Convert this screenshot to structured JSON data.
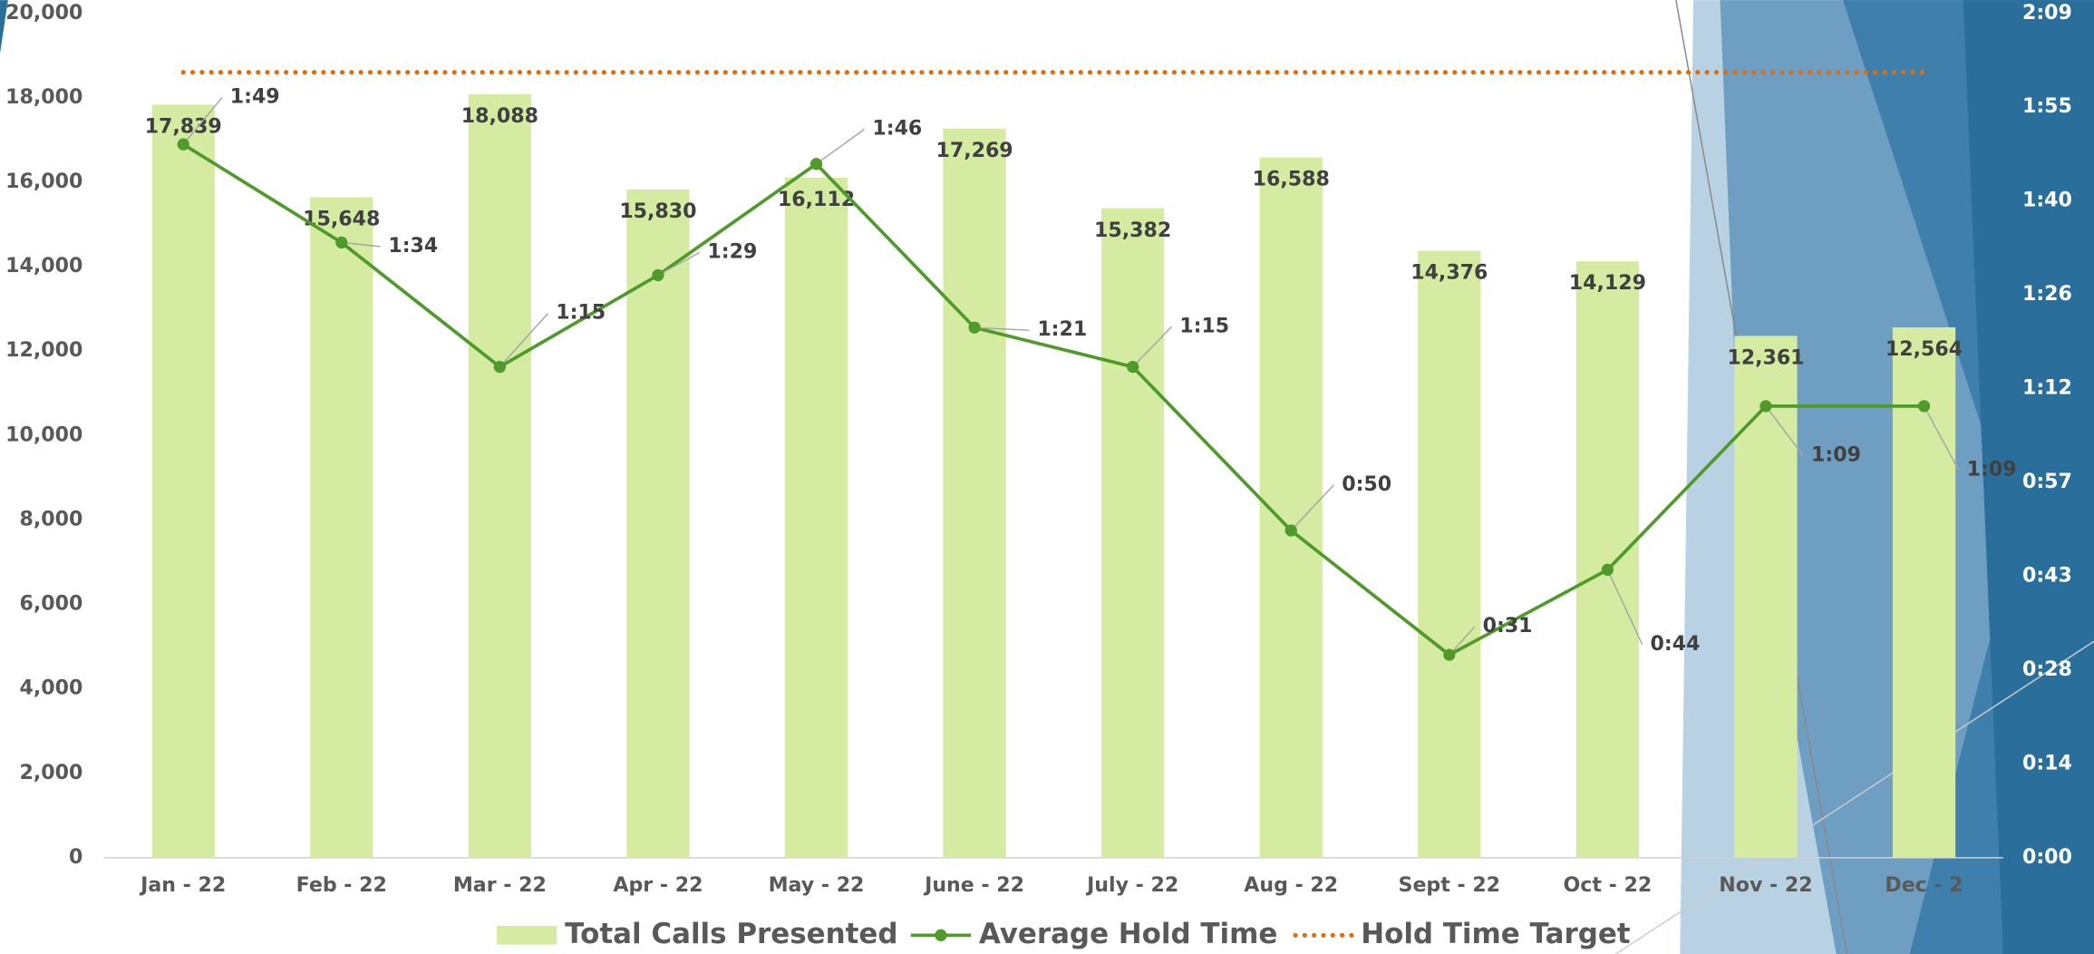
{
  "chart_data": {
    "type": "bar-line",
    "categories": [
      "Jan - 22",
      "Feb - 22",
      "Mar - 22",
      "Apr - 22",
      "May - 22",
      "June - 22",
      "July - 22",
      "Aug - 22",
      "Sept - 22",
      "Oct - 22",
      "Nov - 22",
      "Dec - 2"
    ],
    "series": [
      {
        "name": "Total Calls Presented",
        "type": "bar",
        "color": "#d5eba1",
        "values": [
          17839,
          15648,
          18088,
          15830,
          16112,
          17269,
          15382,
          16588,
          14376,
          14129,
          12361,
          12564
        ],
        "value_labels": [
          "17,839",
          "15,648",
          "18,088",
          "15,830",
          "16,112",
          "17,269",
          "15,382",
          "16,588",
          "14,376",
          "14,129",
          "12,361",
          "12,564"
        ]
      },
      {
        "name": "Average Hold Time",
        "type": "line",
        "axis": "y2",
        "color": "#4f9a2b",
        "values": [
          109,
          94,
          75,
          89,
          106,
          81,
          75,
          50,
          31,
          44,
          69,
          69
        ],
        "value_labels": [
          "1:49",
          "1:34",
          "1:15",
          "1:29",
          "1:46",
          "1:21",
          "1:15",
          "0:50",
          "0:31",
          "0:44",
          "1:09",
          "1:09"
        ]
      },
      {
        "name": "Hold Time Target",
        "type": "dotted-line",
        "axis": "y2",
        "color": "#e36c0a",
        "value": 120
      }
    ],
    "ylim": [
      0,
      20000
    ],
    "yticks": [
      0,
      {
        "value": 2000,
        "label": "2,000"
      },
      {
        "value": 4000,
        "label": "4,000"
      },
      {
        "value": 6000,
        "label": "6,000"
      },
      {
        "value": 8000,
        "label": "8,000"
      },
      {
        "value": 10000,
        "label": "10,000"
      },
      {
        "value": 12000,
        "label": "12,000"
      },
      {
        "value": 14000,
        "label": "14,000"
      },
      {
        "value": 16000,
        "label": "16,000"
      },
      {
        "value": 18000,
        "label": "18,000"
      },
      {
        "value": 20000,
        "label": "20,000"
      }
    ],
    "y2lim": [
      0,
      129
    ],
    "y2ticks": [
      {
        "value": 0,
        "label": "0:00"
      },
      {
        "value": 14.33,
        "label": "0:14"
      },
      {
        "value": 28.67,
        "label": "0:28"
      },
      {
        "value": 43,
        "label": "0:43"
      },
      {
        "value": 57.33,
        "label": "0:57"
      },
      {
        "value": 71.67,
        "label": "1:12"
      },
      {
        "value": 86,
        "label": "1:26"
      },
      {
        "value": 100.33,
        "label": "1:40"
      },
      {
        "value": 114.67,
        "label": "1:55"
      },
      {
        "value": 129,
        "label": "2:09"
      }
    ],
    "grid": false,
    "legend": "bottom"
  }
}
